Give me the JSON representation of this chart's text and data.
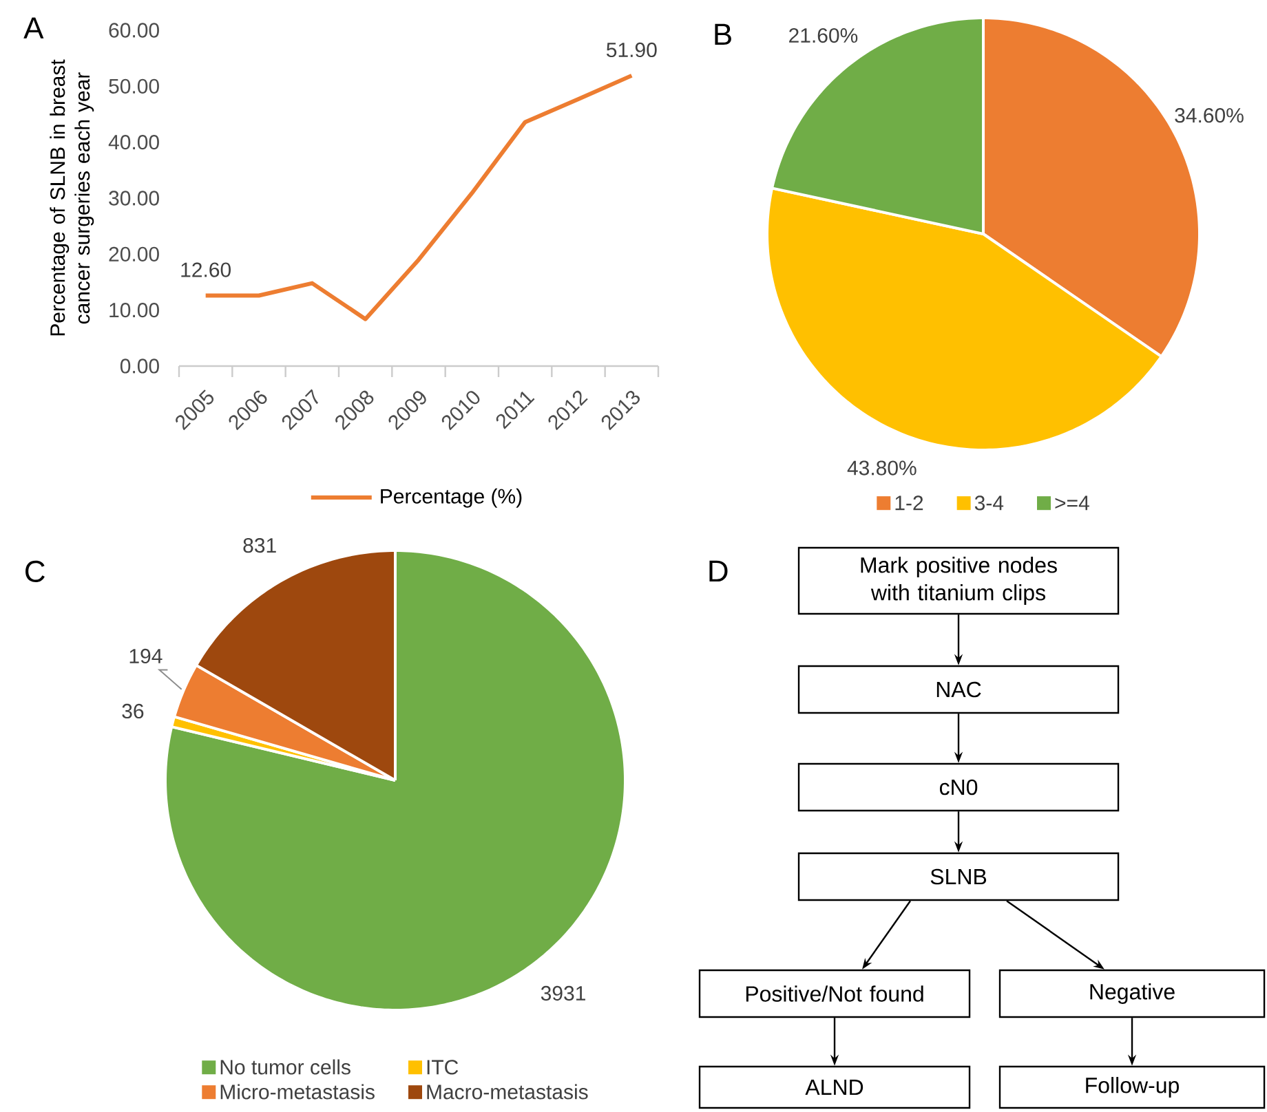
{
  "chart_data": [
    {
      "type": "line",
      "title": "A",
      "ylabel": "Percentage of SLNB in breast cancer surgeries each year",
      "categories": [
        "2005",
        "2006",
        "2007",
        "2008",
        "2009",
        "2010",
        "2011",
        "2012",
        "2013"
      ],
      "series": [
        {
          "name": "Percentage (%)",
          "color": "#ED7D31",
          "values": [
            12.6,
            12.6,
            14.8,
            8.4,
            19.0,
            30.9,
            43.6,
            47.7,
            51.9
          ],
          "value_labels": [
            "12.60",
            null,
            null,
            null,
            null,
            null,
            null,
            null,
            "51.90"
          ]
        }
      ],
      "ylim": [
        0,
        60
      ],
      "yticks": [
        {
          "value": 0,
          "label": "0.00"
        },
        {
          "value": 10,
          "label": "10.00"
        },
        {
          "value": 20,
          "label": "20.00"
        },
        {
          "value": 30,
          "label": "30.00"
        },
        {
          "value": 40,
          "label": "40.00"
        },
        {
          "value": 50,
          "label": "50.00"
        },
        {
          "value": 60,
          "label": "60.00"
        }
      ],
      "legend": "bottom"
    },
    {
      "type": "pie",
      "title": "B",
      "categories": [
        "1-2",
        "3-4",
        ">=4"
      ],
      "values": [
        34.6,
        43.8,
        21.6
      ],
      "colors": [
        "#ED7D31",
        "#FFC000",
        "#70AD47"
      ],
      "value_labels": [
        "34.60%",
        "43.80%",
        "21.60%"
      ],
      "legend": "bottom"
    },
    {
      "type": "pie",
      "title": "C",
      "categories": [
        "No tumor cells",
        "ITC",
        "Micro-metastasis",
        "Macro-metastasis"
      ],
      "values": [
        3931,
        36,
        194,
        831
      ],
      "colors": [
        "#70AD47",
        "#FFC000",
        "#ED7D31",
        "#9E480E"
      ],
      "data_labels": true,
      "legend": "bottom"
    },
    {
      "type": "other",
      "title": "D",
      "annotations": [
        "Mark positive nodes with titanium clips",
        "NAC",
        "cN0",
        "SLNB",
        "Positive/Not found",
        "Negative",
        "ALND",
        "Follow-up"
      ]
    }
  ]
}
